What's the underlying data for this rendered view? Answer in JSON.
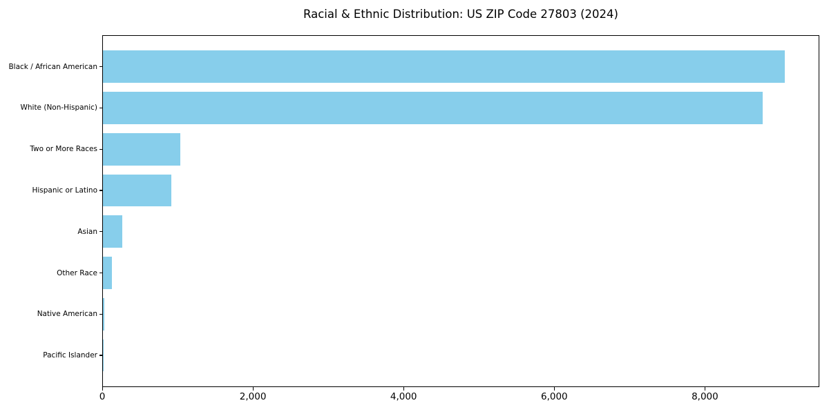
{
  "chart_data": {
    "type": "bar",
    "orientation": "horizontal",
    "title": "Racial & Ethnic Distribution: US ZIP Code 27803 (2024)",
    "categories": [
      "Black / African American",
      "White (Non-Hispanic)",
      "Two or More Races",
      "Hispanic or Latino",
      "Asian",
      "Other Race",
      "Native American",
      "Pacific Islander"
    ],
    "values": [
      9050,
      8760,
      1030,
      910,
      260,
      115,
      20,
      5
    ],
    "xlabel": "",
    "ylabel": "",
    "xlim": [
      0,
      9500
    ],
    "x_ticks": [
      0,
      2000,
      4000,
      6000,
      8000
    ],
    "x_tick_labels": [
      "0",
      "2,000",
      "4,000",
      "6,000",
      "8,000"
    ],
    "bar_color": "#87CEEB",
    "axis_color": "#000000",
    "text_color": "#000000",
    "background_color": "#ffffff",
    "grid": false,
    "legend": "none",
    "bar_rel_height": 0.78
  }
}
